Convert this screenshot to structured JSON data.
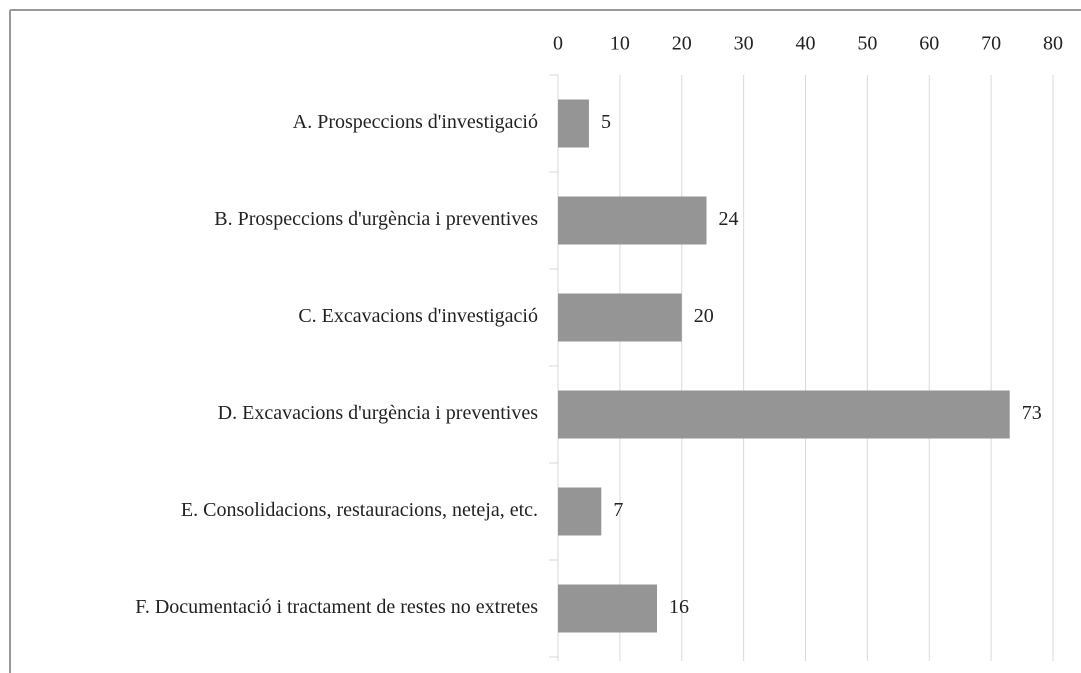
{
  "chart_data": {
    "type": "hbar",
    "categories": [
      "A. Prospeccions d'investigació",
      "B. Prospeccions d'urgència i preventives",
      "C. Excavacions d'investigació",
      "D. Excavacions d'urgència i preventives",
      "E. Consolidacions, restauracions, neteja, etc.",
      "F. Documentació i tractament de restes no extretes"
    ],
    "values": [
      5,
      24,
      20,
      73,
      7,
      16
    ],
    "color": "#959595",
    "xlim": [
      0,
      80
    ],
    "xticks": [
      0,
      10,
      20,
      30,
      40,
      50,
      60,
      70,
      80
    ],
    "grid": true
  }
}
